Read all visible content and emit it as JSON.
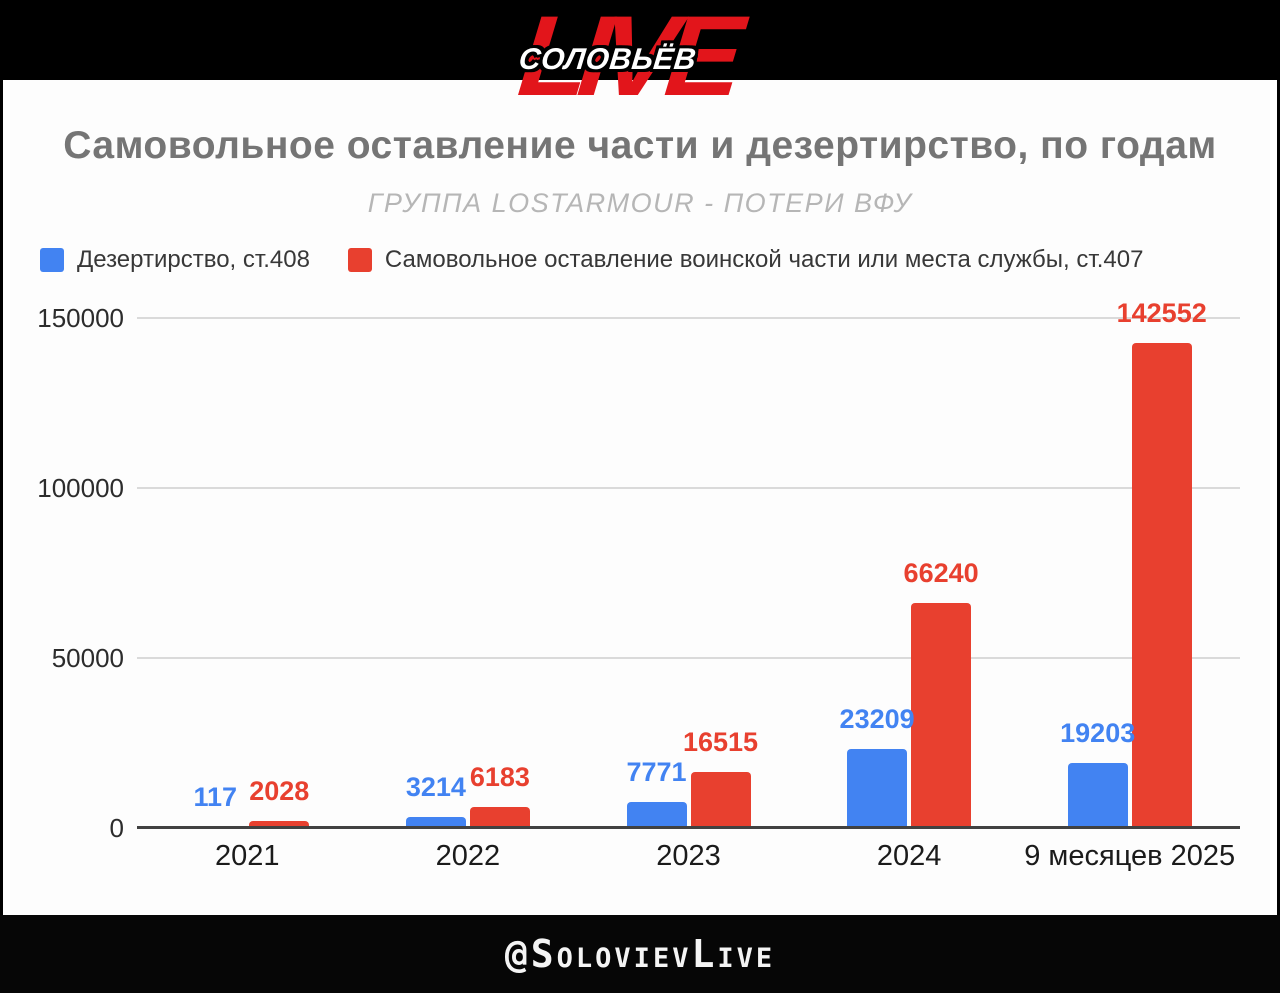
{
  "brand": {
    "channel": "СОЛОВЬЁВ",
    "live": "LIVE",
    "live_color": "#e2151b"
  },
  "header": {
    "title": "Самовольное оставление части и дезертирство, по годам",
    "subtitle": "ГРУППА LOSTARMOUR - ПОТЕРИ ВФУ"
  },
  "chart_data": {
    "type": "bar",
    "title": "Самовольное оставление части и дезертирство, по годам",
    "subtitle": "ГРУППА LOSTARMOUR - ПОТЕРИ ВФУ",
    "categories": [
      "2021",
      "2022",
      "2023",
      "2024",
      "9 месяцев 2025"
    ],
    "series": [
      {
        "name": "Дезертирство, ст.408",
        "color": "#4283f2",
        "values": [
          117,
          3214,
          7771,
          23209,
          19203
        ]
      },
      {
        "name": "Самовольное оставление воинской части или места службы, ст.407",
        "color": "#e8402f",
        "values": [
          2028,
          6183,
          16515,
          66240,
          142552
        ]
      }
    ],
    "ylim": [
      0,
      150000
    ],
    "yticks": [
      0,
      50000,
      100000,
      150000
    ],
    "ytick_labels": [
      "0",
      "50000",
      "100000",
      "150000"
    ],
    "grid": true,
    "data_labels": true,
    "legend_position": "top-left"
  },
  "footer": {
    "handle": "@SolovievLive"
  }
}
